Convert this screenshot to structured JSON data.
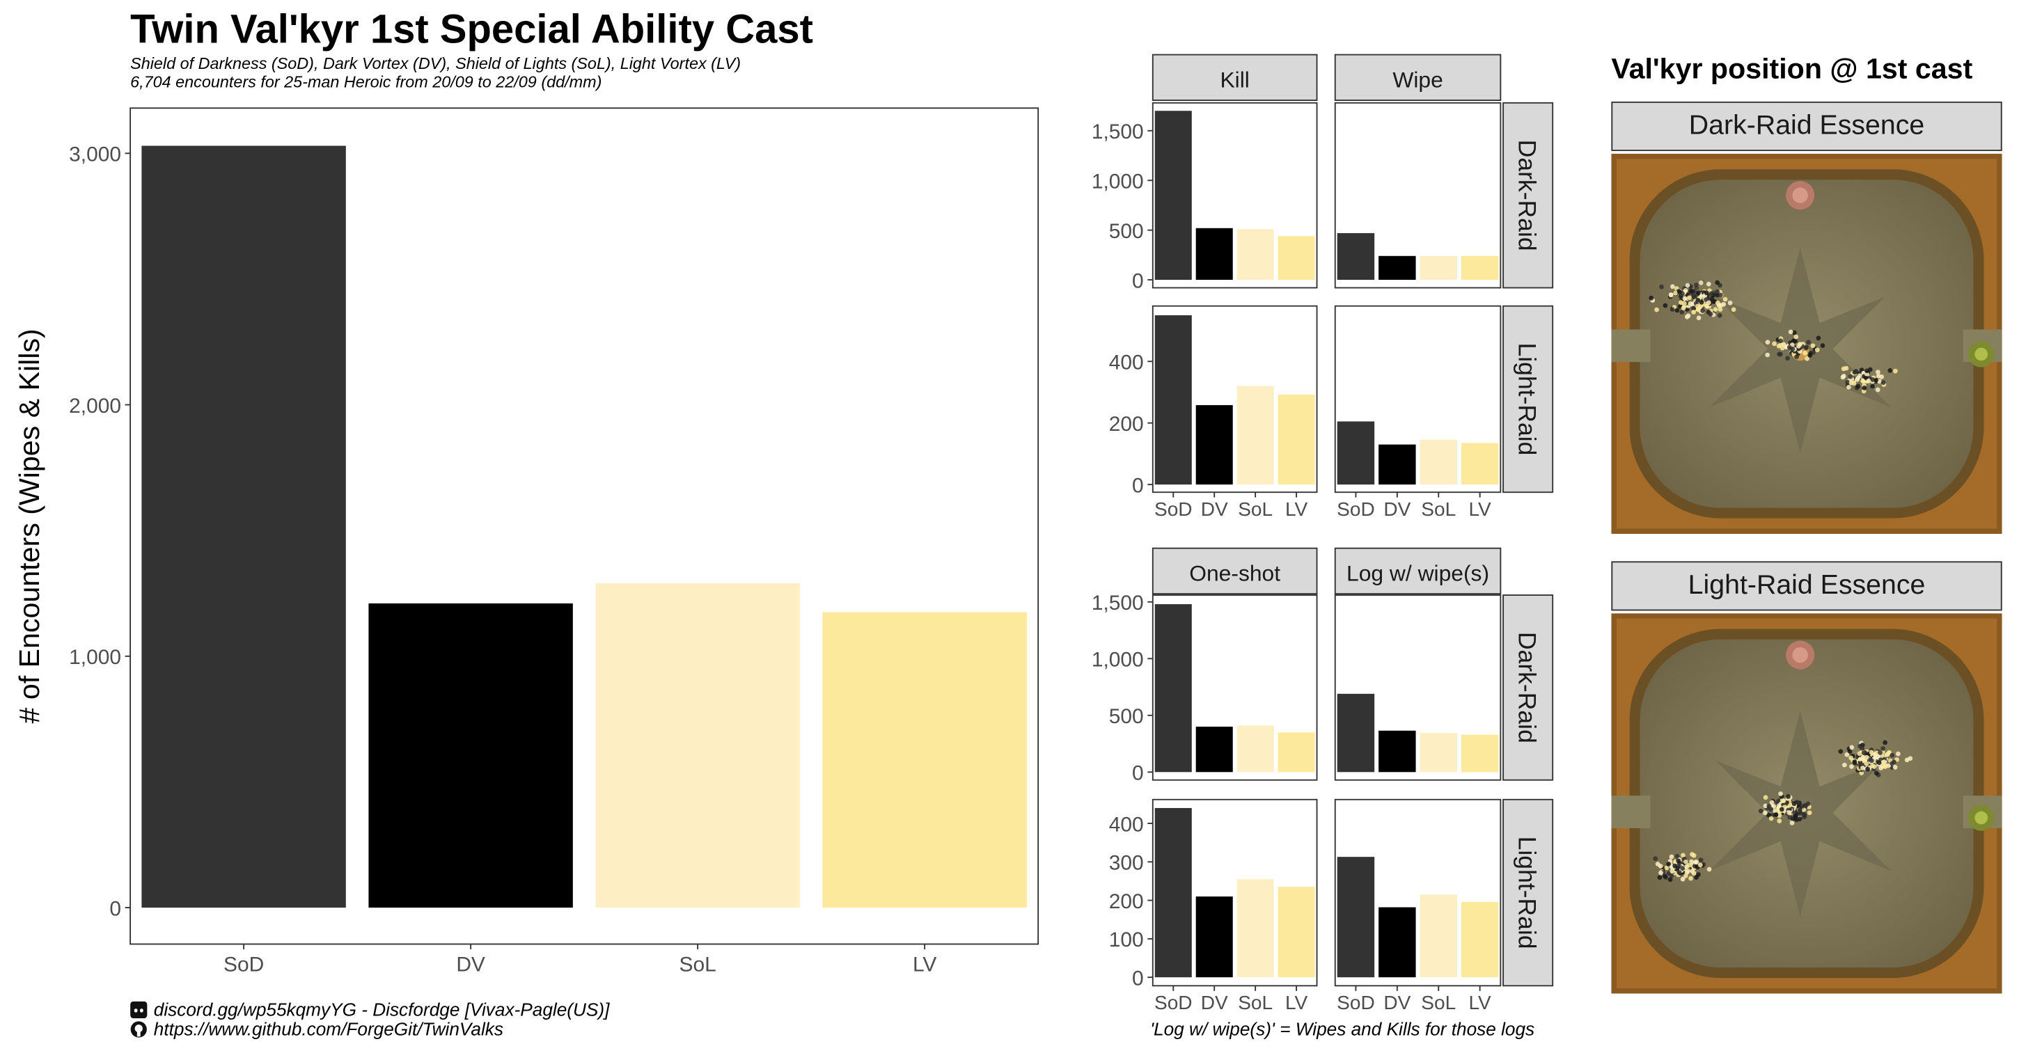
{
  "title": "Twin Val'kyr 1st Special Ability Cast",
  "subtitle_line1": "Shield of Darkness (SoD), Dark Vortex (DV), Shield of Lights (SoL), Light Vortex (LV)",
  "subtitle_line2": "6,704 encounters for 25-man Heroic from 20/09 to 22/09 (dd/mm)",
  "colors": {
    "SoD": "#333333",
    "DV": "#000000",
    "SoL": "#fdefc3",
    "LV": "#fde99b"
  },
  "caption": {
    "discord": "discord.gg/wp55kqmyYG - Discfordge [Vivax-Pagle(US)]",
    "github": "https://www.github.com/ForgeGit/TwinValks",
    "discord_icon": "discord-icon",
    "github_icon": "github-icon"
  },
  "facet_caption": "'Log w/ wipe(s)' = Wipes and Kills for those logs",
  "map_panel": {
    "title": "Val'kyr position @ 1st cast",
    "panels": [
      "Dark-Raid Essence",
      "Light-Raid Essence"
    ]
  },
  "chart_data": [
    {
      "id": "main",
      "type": "bar",
      "title": "Twin Val'kyr 1st Special Ability Cast",
      "xlabel": "",
      "ylabel": "# of Encounters (Wipes & Kills)",
      "categories": [
        "SoD",
        "DV",
        "SoL",
        "LV"
      ],
      "values": [
        3030,
        1210,
        1290,
        1175
      ],
      "ylim": [
        -145,
        3180
      ],
      "yticks": [
        0,
        1000,
        2000,
        3000
      ],
      "ytick_labels": [
        "0",
        "1,000",
        "2,000",
        "3,000"
      ],
      "legend": "none",
      "grid": false
    },
    {
      "id": "facet-top",
      "type": "bar",
      "categories": [
        "SoD",
        "DV",
        "SoL",
        "LV"
      ],
      "columns": [
        "Kill",
        "Wipe"
      ],
      "rows": [
        "Dark-Raid",
        "Light-Raid"
      ],
      "cells": {
        "Dark-Raid": {
          "Kill": [
            1700,
            520,
            510,
            440
          ],
          "Wipe": [
            470,
            240,
            240,
            240
          ]
        },
        "Light-Raid": {
          "Kill": [
            550,
            258,
            320,
            292
          ],
          "Wipe": [
            205,
            130,
            146,
            135
          ]
        }
      },
      "row_scales": {
        "Dark-Raid": {
          "ylim": [
            -80,
            1780
          ],
          "yticks": [
            0,
            500,
            1000,
            1500
          ],
          "ytick_labels": [
            "0",
            "500",
            "1,000",
            "1,500"
          ]
        },
        "Light-Raid": {
          "ylim": [
            -25,
            580
          ],
          "yticks": [
            0,
            200,
            400
          ],
          "ytick_labels": [
            "0",
            "200",
            "400"
          ]
        }
      },
      "grid": false
    },
    {
      "id": "facet-bottom",
      "type": "bar",
      "categories": [
        "SoD",
        "DV",
        "SoL",
        "LV"
      ],
      "columns": [
        "One-shot",
        "Log w/ wipe(s)"
      ],
      "rows": [
        "Dark-Raid",
        "Light-Raid"
      ],
      "cells": {
        "Dark-Raid": {
          "One-shot": [
            1480,
            400,
            410,
            350
          ],
          "Log w/ wipe(s)": [
            690,
            365,
            345,
            330
          ]
        },
        "Light-Raid": {
          "One-shot": [
            440,
            210,
            255,
            235
          ],
          "Log w/ wipe(s)": [
            313,
            182,
            215,
            196
          ]
        }
      },
      "row_scales": {
        "Dark-Raid": {
          "ylim": [
            -70,
            1560
          ],
          "yticks": [
            0,
            500,
            1000,
            1500
          ],
          "ytick_labels": [
            "0",
            "500",
            "1,000",
            "1,500"
          ]
        },
        "Light-Raid": {
          "ylim": [
            -22,
            462
          ],
          "yticks": [
            0,
            100,
            200,
            300,
            400
          ],
          "ytick_labels": [
            "0",
            "100",
            "200",
            "300",
            "400"
          ]
        }
      },
      "grid": false
    }
  ]
}
